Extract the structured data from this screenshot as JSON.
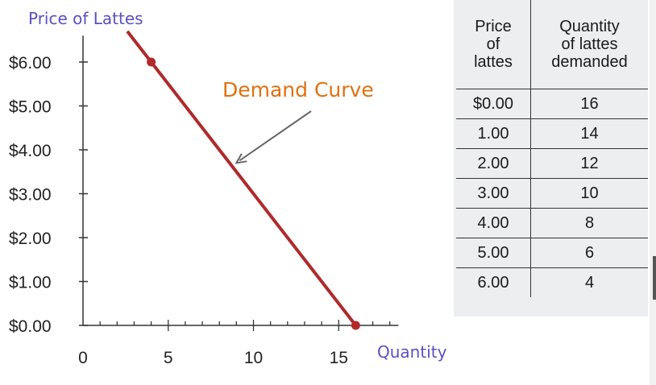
{
  "chart_data": {
    "type": "line",
    "ylabel": "Price of Lattes",
    "xlabel": "Quantity of Lattes",
    "xlim": [
      0,
      18.5
    ],
    "ylim": [
      0,
      6.6
    ],
    "x_ticks": [
      0,
      5,
      10,
      15
    ],
    "x_tick_labels": [
      "0",
      "5",
      "10",
      "15"
    ],
    "y_ticks": [
      0,
      1,
      2,
      3,
      4,
      5,
      6
    ],
    "y_tick_labels": [
      "$0.00",
      "$1.00",
      "$2.00",
      "$3.00",
      "$4.00",
      "$5.00",
      "$6.00"
    ],
    "x_minor_tick_step": 1,
    "series": [
      {
        "name": "Demand Curve",
        "color": "#b02a2a",
        "x": [
          16,
          4
        ],
        "y": [
          0.0,
          6.0
        ],
        "line_extends_to": {
          "x": 2.6,
          "y": 6.7
        }
      }
    ],
    "annotation": {
      "text": "Demand Curve",
      "color": "#e2700f",
      "points_to": {
        "x": 9,
        "y": 3.7
      }
    },
    "table": {
      "headers": [
        [
          "Price",
          "of",
          "lattes"
        ],
        [
          "Quantity",
          "of lattes",
          "demanded"
        ]
      ],
      "rows": [
        [
          "$0.00",
          "16"
        ],
        [
          "1.00",
          "14"
        ],
        [
          "2.00",
          "12"
        ],
        [
          "3.00",
          "10"
        ],
        [
          "4.00",
          "8"
        ],
        [
          "5.00",
          "6"
        ],
        [
          "6.00",
          "4"
        ]
      ]
    }
  }
}
